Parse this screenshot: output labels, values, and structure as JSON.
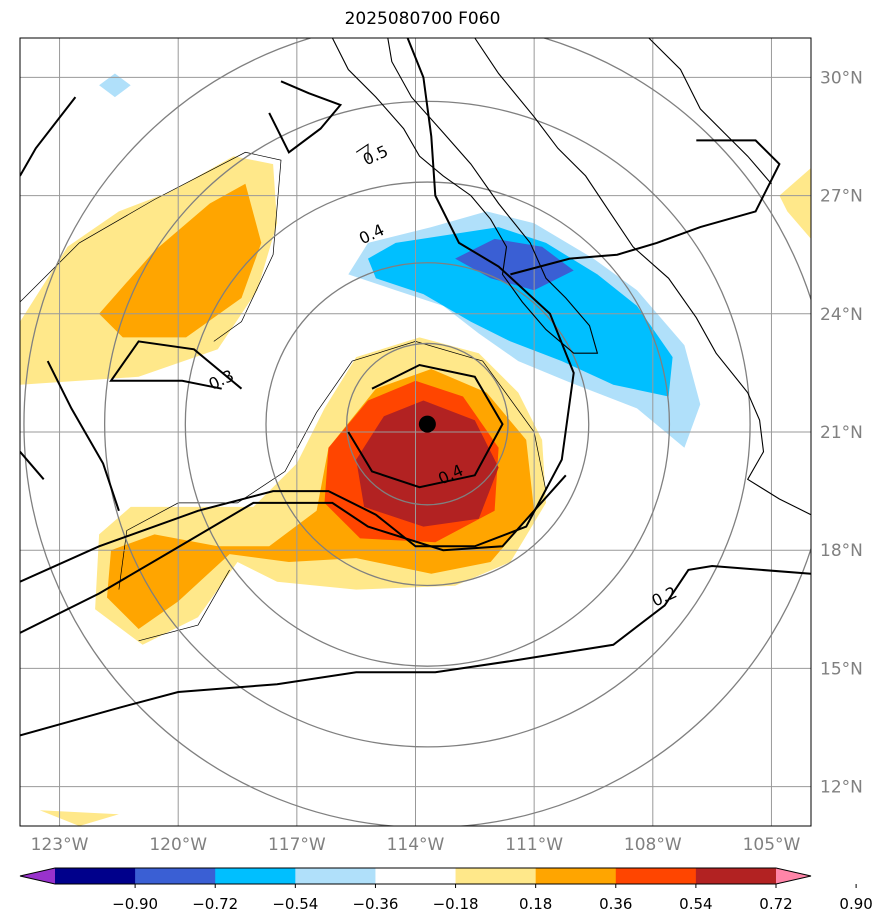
{
  "title": "2025080700 F060",
  "chart_data": {
    "type": "heatmap",
    "title": "2025080700 F060",
    "lon_range": [
      -124,
      -104
    ],
    "lat_range": [
      11,
      31
    ],
    "lon_ticks": [
      -123,
      -120,
      -117,
      -114,
      -111,
      -108,
      -105
    ],
    "lon_tick_labels": [
      "123°W",
      "120°W",
      "117°W",
      "114°W",
      "111°W",
      "108°W",
      "105°W"
    ],
    "lat_ticks": [
      12,
      15,
      18,
      21,
      24,
      27,
      30
    ],
    "lat_tick_labels": [
      "12°N",
      "15°N",
      "18°N",
      "21°N",
      "24°N",
      "27°N",
      "30°N"
    ],
    "grid": true,
    "center_marker": {
      "lon": -113.7,
      "lat": 21.2
    },
    "range_rings_deg": [
      2,
      4,
      6,
      8,
      10
    ],
    "colorbar": {
      "bounds": [
        -0.9,
        -0.72,
        -0.54,
        -0.36,
        -0.18,
        0.18,
        0.36,
        0.54,
        0.72,
        0.9
      ],
      "tick_labels": [
        "−0.90",
        "−0.72",
        "−0.54",
        "−0.36",
        "−0.18",
        "0.18",
        "0.36",
        "0.54",
        "0.72",
        "0.90"
      ],
      "colors": [
        "#9932cc",
        "#00008b",
        "#3a5fd4",
        "#00bfff",
        "#b0e0fa",
        "#ffffff",
        "#ffe88a",
        "#ffa500",
        "#ff4500",
        "#b22222",
        "#ff85a8"
      ],
      "extend": "both"
    },
    "contour_labels": [
      {
        "text": "0.5",
        "lon": -115.0,
        "lat": 28.0
      },
      {
        "text": "0.4",
        "lon": -115.1,
        "lat": 26.0
      },
      {
        "text": "0.3",
        "lon": -118.9,
        "lat": 22.3
      },
      {
        "text": "0.4",
        "lon": -113.1,
        "lat": 19.9
      },
      {
        "text": "0.2",
        "lon": -107.7,
        "lat": 16.8
      }
    ]
  }
}
